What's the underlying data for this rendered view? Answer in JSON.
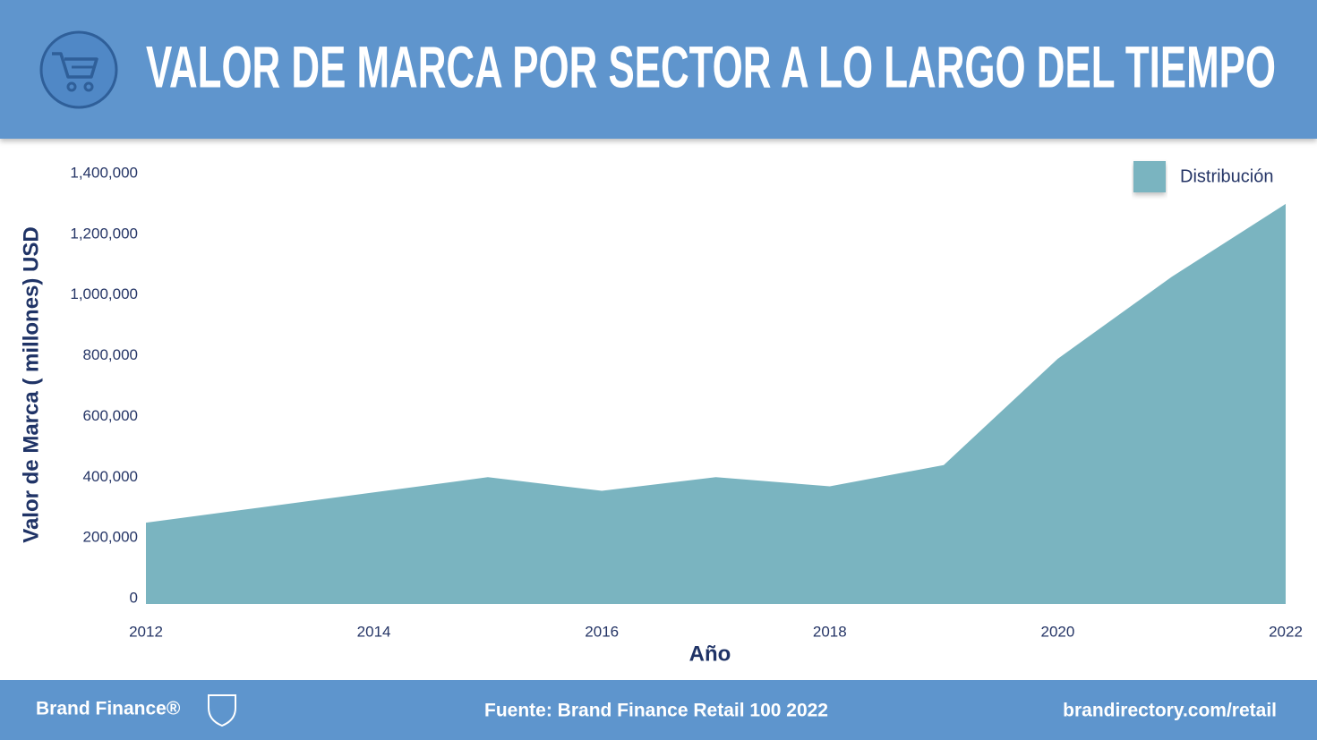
{
  "chart_data": {
    "type": "area",
    "title": "VALOR DE MARCA POR SECTOR A LO LARGO DEL TIEMPO",
    "y_label": "Valor de Marca ( millones) USD",
    "x_label": "Año",
    "x": [
      2012,
      2013,
      2014,
      2015,
      2016,
      2017,
      2018,
      2019,
      2020,
      2021,
      2022
    ],
    "series": [
      {
        "name": "Distribución",
        "color": "#7ab4c0",
        "values": [
          250000,
          300000,
          350000,
          400000,
          355000,
          400000,
          370000,
          440000,
          790000,
          1060000,
          1300000
        ]
      }
    ],
    "xlim": [
      2012,
      2022
    ],
    "xticks": [
      2012,
      2014,
      2016,
      2018,
      2020,
      2022
    ],
    "ylim": [
      0,
      1400000
    ],
    "yticks": [
      0,
      {
        "value": 200000,
        "label": "200,000"
      },
      {
        "value": 400000,
        "label": "400,000"
      },
      {
        "value": 600000,
        "label": "600,000"
      },
      {
        "value": 800000,
        "label": "800,000"
      },
      {
        "value": 1000000,
        "label": "1,000,000"
      },
      {
        "value": 1200000,
        "label": "1,200,000"
      },
      {
        "value": 1400000,
        "label": "1,400,000"
      }
    ],
    "legend": "top-right"
  },
  "footer": {
    "brand": "Brand Finance®",
    "source": "Fuente: Brand Finance Retail 100 2022",
    "url": "brandirectory.com/retail"
  }
}
